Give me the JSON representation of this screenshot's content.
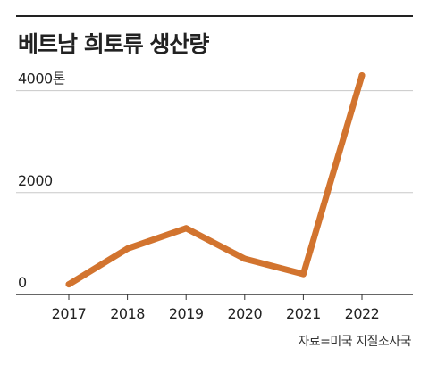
{
  "header": {
    "title": "베트남 희토류 생산량"
  },
  "chart_data": {
    "type": "line",
    "title": "베트남 희토류 생산량",
    "categories": [
      "2017",
      "2018",
      "2019",
      "2020",
      "2021",
      "2022"
    ],
    "values": [
      200,
      900,
      1300,
      700,
      400,
      4300
    ],
    "y_ticks": [
      0,
      2000,
      4000
    ],
    "y_tick_labels": [
      "0",
      "2000",
      "4000톤"
    ],
    "ylim": [
      0,
      4700
    ],
    "grid": true,
    "series_color": "#d2742f"
  },
  "footer": {
    "source": "자료=미국 지질조사국"
  }
}
